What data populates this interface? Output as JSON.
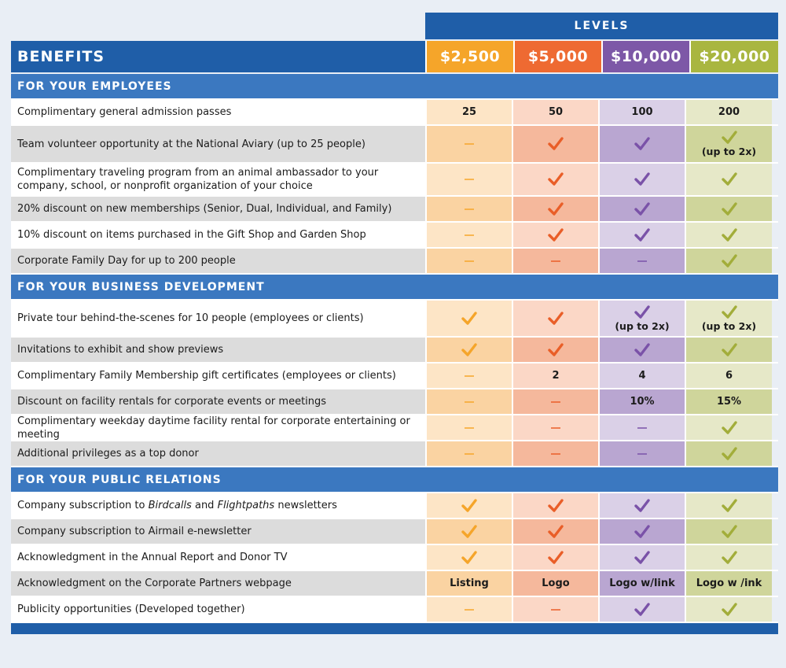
{
  "header": {
    "levels_label": "LEVELS",
    "benefits_label": "BENEFITS",
    "levels": [
      {
        "price": "$2,500",
        "color": "#f5a52a",
        "tint_light": "#fde5c6",
        "tint_dark": "#fad3a2",
        "mark_color": "#f5a52a"
      },
      {
        "price": "$5,000",
        "color": "#ee6a32",
        "tint_light": "#fbd7c6",
        "tint_dark": "#f5b89c",
        "mark_color": "#e95e28"
      },
      {
        "price": "$10,000",
        "color": "#7d58a7",
        "tint_light": "#dad0e7",
        "tint_dark": "#b9a6d1",
        "mark_color": "#7a52a8"
      },
      {
        "price": "$20,000",
        "color": "#a9b640",
        "tint_light": "#e6e8c8",
        "tint_dark": "#cfd59b",
        "mark_color": "#a2ad3a"
      }
    ]
  },
  "sections": [
    {
      "title": "FOR YOUR EMPLOYEES",
      "rows": [
        {
          "benefit": "Complimentary general admission passes",
          "cells": [
            {
              "t": "text",
              "v": "25"
            },
            {
              "t": "text",
              "v": "50"
            },
            {
              "t": "text",
              "v": "100"
            },
            {
              "t": "text",
              "v": "200"
            }
          ]
        },
        {
          "benefit": "Team volunteer opportunity at the National Aviary (up to 25 people)",
          "cells": [
            {
              "t": "dash"
            },
            {
              "t": "check"
            },
            {
              "t": "check"
            },
            {
              "t": "check",
              "sub": "(up to 2x)"
            }
          ]
        },
        {
          "benefit": "Complimentary traveling program from an animal ambassador to your company, school, or nonprofit organization of your choice",
          "cells": [
            {
              "t": "dash"
            },
            {
              "t": "check"
            },
            {
              "t": "check"
            },
            {
              "t": "check"
            }
          ]
        },
        {
          "benefit": "20% discount on new memberships (Senior, Dual, Individual, and Family)",
          "cells": [
            {
              "t": "dash"
            },
            {
              "t": "check"
            },
            {
              "t": "check"
            },
            {
              "t": "check"
            }
          ]
        },
        {
          "benefit": "10% discount on items purchased in the Gift Shop and Garden Shop",
          "cells": [
            {
              "t": "dash"
            },
            {
              "t": "check"
            },
            {
              "t": "check"
            },
            {
              "t": "check"
            }
          ]
        },
        {
          "benefit": "Corporate Family Day for up to 200 people",
          "cells": [
            {
              "t": "dash"
            },
            {
              "t": "dash"
            },
            {
              "t": "dash"
            },
            {
              "t": "check"
            }
          ]
        }
      ]
    },
    {
      "title": "FOR YOUR BUSINESS DEVELOPMENT",
      "rows": [
        {
          "benefit": "Private tour behind-the-scenes for 10 people (employees or clients)",
          "cells": [
            {
              "t": "check"
            },
            {
              "t": "check"
            },
            {
              "t": "check",
              "sub": "(up to 2x)"
            },
            {
              "t": "check",
              "sub": "(up to 2x)"
            }
          ]
        },
        {
          "benefit": "Invitations to exhibit and show previews",
          "cells": [
            {
              "t": "check"
            },
            {
              "t": "check"
            },
            {
              "t": "check"
            },
            {
              "t": "check"
            }
          ]
        },
        {
          "benefit": "Complimentary Family Membership gift certificates (employees or clients)",
          "cells": [
            {
              "t": "dash"
            },
            {
              "t": "text",
              "v": "2"
            },
            {
              "t": "text",
              "v": "4"
            },
            {
              "t": "text",
              "v": "6"
            }
          ]
        },
        {
          "benefit": "Discount on facility rentals for corporate events or meetings",
          "cells": [
            {
              "t": "dash"
            },
            {
              "t": "dash"
            },
            {
              "t": "text",
              "v": "10%"
            },
            {
              "t": "text",
              "v": "15%"
            }
          ]
        },
        {
          "benefit": "Complimentary weekday daytime facility rental for corporate entertaining or meeting",
          "cells": [
            {
              "t": "dash"
            },
            {
              "t": "dash"
            },
            {
              "t": "dash"
            },
            {
              "t": "check"
            }
          ]
        },
        {
          "benefit": "Additional privileges as a top donor",
          "cells": [
            {
              "t": "dash"
            },
            {
              "t": "dash"
            },
            {
              "t": "dash"
            },
            {
              "t": "check"
            }
          ]
        }
      ]
    },
    {
      "title": "FOR YOUR PUBLIC RELATIONS",
      "rows": [
        {
          "benefit_parts": [
            "Company subscription to ",
            "Birdcalls",
            " and ",
            "Flightpaths",
            " newsletters"
          ],
          "cells": [
            {
              "t": "check"
            },
            {
              "t": "check"
            },
            {
              "t": "check"
            },
            {
              "t": "check"
            }
          ]
        },
        {
          "benefit": "Company subscription to Airmail e-newsletter",
          "cells": [
            {
              "t": "check"
            },
            {
              "t": "check"
            },
            {
              "t": "check"
            },
            {
              "t": "check"
            }
          ]
        },
        {
          "benefit": "Acknowledgment in the Annual Report and Donor TV",
          "cells": [
            {
              "t": "check"
            },
            {
              "t": "check"
            },
            {
              "t": "check"
            },
            {
              "t": "check"
            }
          ]
        },
        {
          "benefit": "Acknowledgment on the Corporate Partners webpage",
          "cells": [
            {
              "t": "text",
              "v": "Listing"
            },
            {
              "t": "text",
              "v": "Logo"
            },
            {
              "t": "text",
              "v": "Logo w/link"
            },
            {
              "t": "text",
              "v": "Logo w /ink"
            }
          ]
        },
        {
          "benefit": "Publicity opportunities (Developed together)",
          "cells": [
            {
              "t": "dash"
            },
            {
              "t": "dash"
            },
            {
              "t": "check"
            },
            {
              "t": "check"
            }
          ]
        }
      ]
    }
  ]
}
